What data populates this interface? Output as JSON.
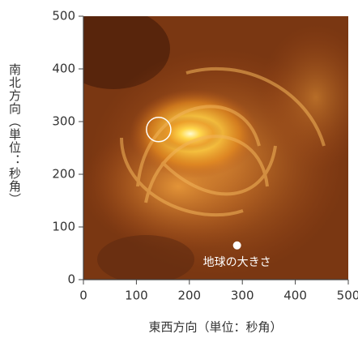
{
  "chart_data": {
    "type": "image",
    "xlabel": "東西方向（単位：秒角）",
    "ylabel": "南北方向（単位：秒角）",
    "xlim": [
      0,
      500
    ],
    "ylim": [
      0,
      500
    ],
    "xticks": [
      0,
      100,
      200,
      300,
      400,
      500
    ],
    "yticks": [
      0,
      100,
      200,
      300,
      400,
      500
    ],
    "circles": [
      {
        "x": 142,
        "y": 285,
        "r": 23
      }
    ],
    "points": [
      {
        "x": 290,
        "y": 65,
        "label": "地球の大きさ"
      }
    ]
  }
}
